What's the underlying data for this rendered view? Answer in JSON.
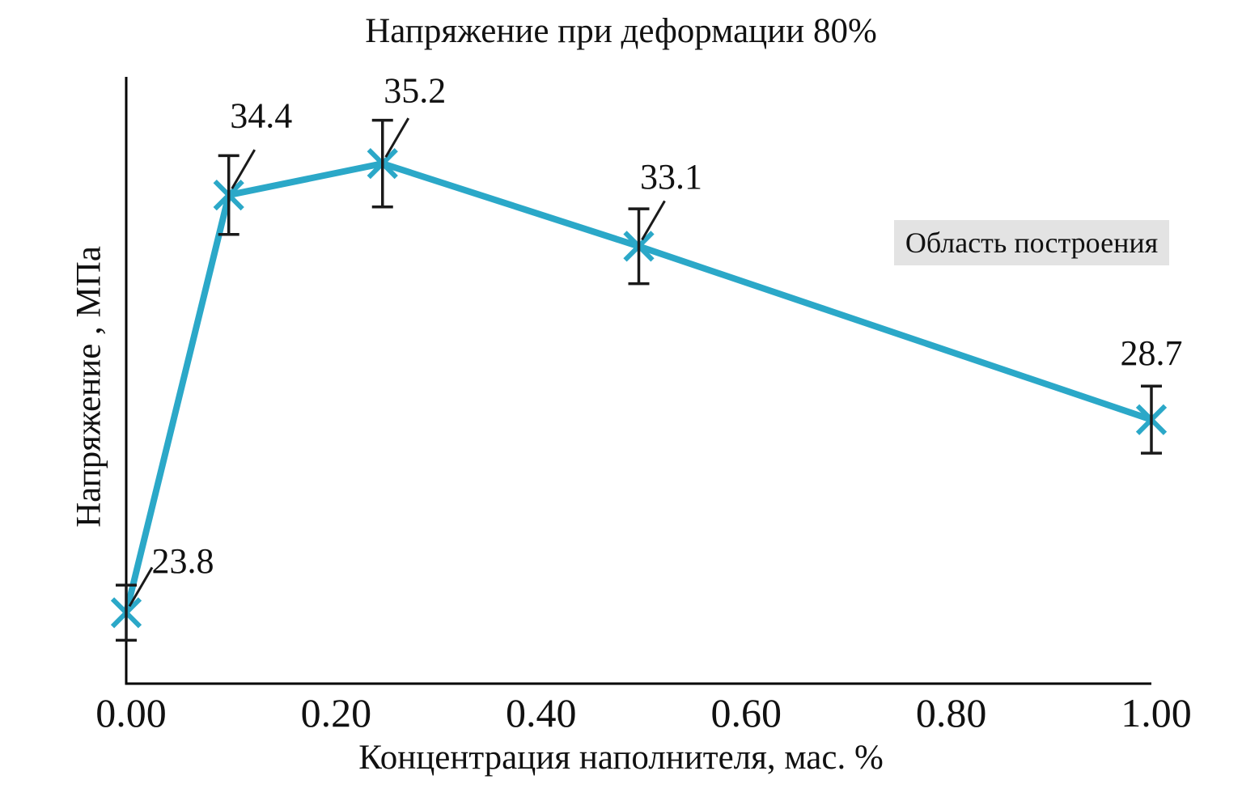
{
  "chart_data": {
    "type": "line",
    "title": "Напряжение при деформации 80%",
    "xlabel": "Концентрация наполнителя, мас. %",
    "ylabel": "Напряжение , МПа",
    "x": [
      0,
      0.1,
      0.25,
      0.5,
      1.0
    ],
    "values": [
      23.8,
      34.4,
      35.2,
      33.1,
      28.7
    ],
    "errors": [
      0.7,
      1.0,
      1.1,
      0.95,
      0.85
    ],
    "point_labels": [
      "23.8",
      "34.4",
      "35.2",
      "33.1",
      "28.7"
    ],
    "x_ticks": [
      "0.00",
      "0.20",
      "0.40",
      "0.60",
      "0.80",
      "1.00"
    ],
    "x_tick_values": [
      0,
      0.2,
      0.4,
      0.6,
      0.8,
      1.0
    ],
    "xlim": [
      0,
      1.0
    ],
    "ylim": [
      22,
      37.4
    ],
    "grid": false,
    "legend": null,
    "marker": "x",
    "line_color": "#2BA8C8",
    "axis_color": "#000000",
    "error_bar_color": "#1a1a1a",
    "leader_line_color": "#1a1a1a",
    "leader_lines": [
      true,
      true,
      true,
      true,
      false
    ]
  },
  "annotations": {
    "plot_area_label": "Область построения",
    "plot_area_label_bg": "#e3e3e3"
  }
}
